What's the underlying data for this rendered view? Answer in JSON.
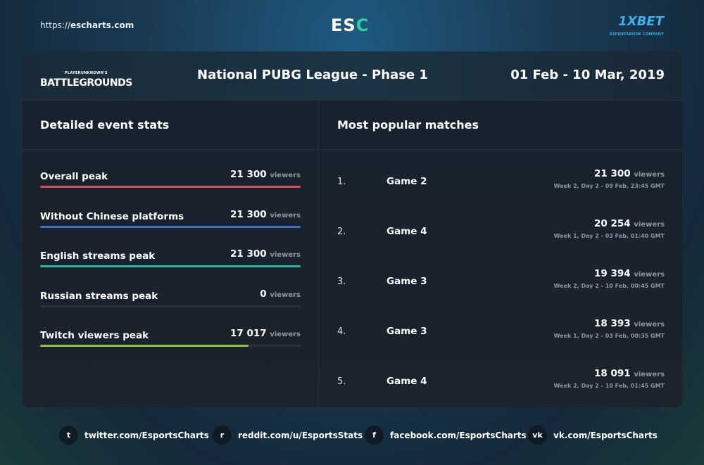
{
  "header": {
    "url_prefix": "https://",
    "url_domain": "escharts.com",
    "logo_left": "ES",
    "logo_right": "C",
    "sponsor": "1XBET",
    "sponsor_sub": "ESPORTSBOOK COMPANY"
  },
  "event": {
    "game_logo_top": "PLAYERUNKNOWN'S",
    "game_logo": "BATTLEGROUNDS",
    "title": "National PUBG League - Phase 1",
    "dates": "01 Feb - 10 Mar, 2019"
  },
  "stats": {
    "heading": "Detailed event stats",
    "unit": "viewers",
    "items": [
      {
        "label": "Overall peak",
        "value": "21 300",
        "fill": 1.0,
        "color": "#d9505e"
      },
      {
        "label": "Without Chinese platforms",
        "value": "21 300",
        "fill": 1.0,
        "color": "#3a72c4"
      },
      {
        "label": "English streams peak",
        "value": "21 300",
        "fill": 1.0,
        "color": "#22b89a"
      },
      {
        "label": "Russian streams peak",
        "value": "0",
        "fill": 0,
        "color": "#8a96a2"
      },
      {
        "label": "Twitch viewers peak",
        "value": "17 017",
        "fill": 0.799,
        "color": "#8cc63f"
      }
    ]
  },
  "matches": {
    "heading": "Most popular matches",
    "unit": "viewers",
    "items": [
      {
        "rank": "1.",
        "name": "Game 2",
        "value": "21 300",
        "date": "Week 2, Day 2 - 09 Feb, 23:45 GMT"
      },
      {
        "rank": "2.",
        "name": "Game 4",
        "value": "20 254",
        "date": "Week 1, Day 2 - 03 Feb, 01:40 GMT"
      },
      {
        "rank": "3.",
        "name": "Game 3",
        "value": "19 394",
        "date": "Week 2, Day 2 - 10 Feb, 00:45 GMT"
      },
      {
        "rank": "4.",
        "name": "Game 3",
        "value": "18 393",
        "date": "Week 1, Day 2 - 03 Feb, 00:35 GMT"
      },
      {
        "rank": "5.",
        "name": "Game 4",
        "value": "18 091",
        "date": "Week 2, Day 2 - 10 Feb, 01:45 GMT"
      }
    ]
  },
  "footer": [
    {
      "icon": "twitter-icon",
      "glyph": "t",
      "label": "twitter.com/EsportsCharts"
    },
    {
      "icon": "reddit-icon",
      "glyph": "r",
      "label": "reddit.com/u/EsportsStats"
    },
    {
      "icon": "facebook-icon",
      "glyph": "f",
      "label": "facebook.com/EsportsCharts"
    },
    {
      "icon": "vk-icon",
      "glyph": "vk",
      "label": "vk.com/EsportsCharts"
    }
  ]
}
